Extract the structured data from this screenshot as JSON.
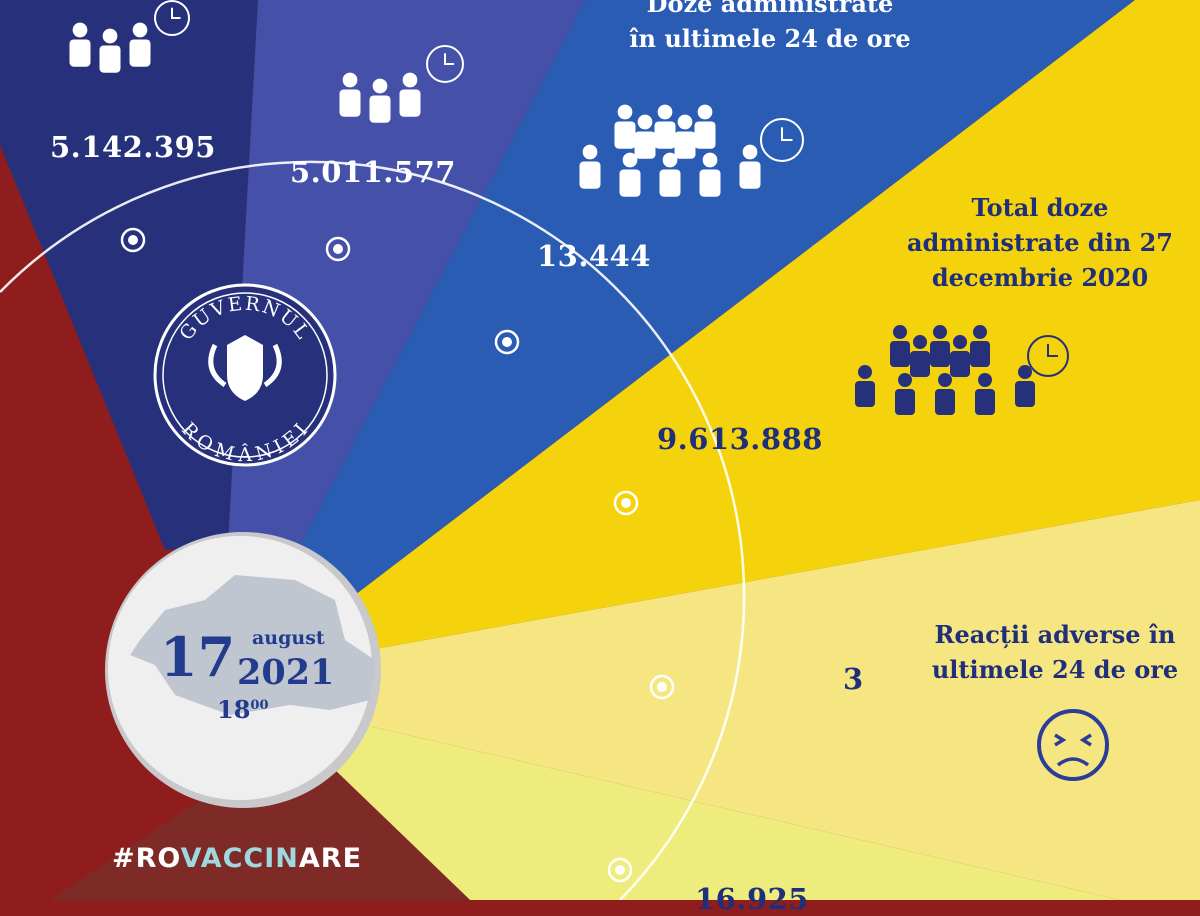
{
  "colors": {
    "red": "#8f1d1d",
    "navy": "#27307a",
    "purple": "#4550a8",
    "blue": "#2a5cb3",
    "yellow": "#f5d30c",
    "pale_yellow": "#f6e682",
    "light_yellow": "#efec7e",
    "dark_red": "#7e2a26",
    "text_navy": "#1f2f7a"
  },
  "stats": {
    "first_dose": {
      "value": "5.142.395",
      "icon": "people-clock-icon"
    },
    "second_dose": {
      "value": "5.011.577",
      "icon": "people-clock-icon"
    },
    "last24": {
      "label_line1": "Doze administrate",
      "label_line2": "în ultimele 24 de ore",
      "value": "13.444",
      "icon": "crowd-clock-icon"
    },
    "total": {
      "label_line1": "Total doze",
      "label_line2": "administrate din 27",
      "label_line3": "decembrie 2020",
      "value": "9.613.888",
      "icon": "crowd-clock-icon"
    },
    "adverse": {
      "label_line1": "Reacții adverse în",
      "label_line2": "ultimele 24 de ore",
      "value": "3",
      "icon": "sad-face-icon"
    },
    "bottom": {
      "value": "16.925"
    }
  },
  "logo": {
    "top": "GUVERNUL",
    "bottom": "ROMÂNIEI"
  },
  "date": {
    "day": "17",
    "month": "august",
    "year": "2021",
    "hour": "18",
    "minutes": "00"
  },
  "hashtag": {
    "pre": "#RO",
    "mid": "VACCIN",
    "post": "ARE"
  }
}
